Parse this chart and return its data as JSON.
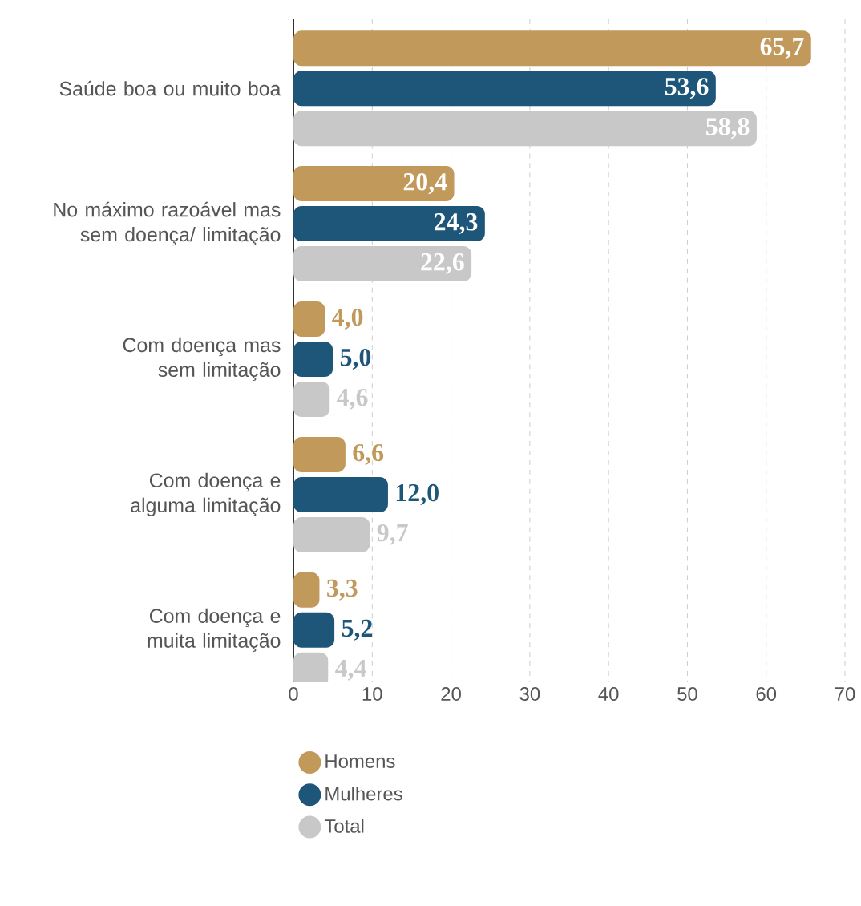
{
  "chart_data": {
    "type": "bar",
    "orientation": "horizontal",
    "categories": [
      "Saúde boa ou muito boa",
      "No máximo razoável mas sem doença/ limitação",
      "Com doença mas sem limitação",
      "Com doença e alguma limitação",
      "Com doença e muita limitação"
    ],
    "series": [
      {
        "name": "Homens",
        "color": "#c1995a",
        "values": [
          65.7,
          20.4,
          4.0,
          6.6,
          3.3
        ],
        "value_labels": [
          "65,7",
          "20,4",
          "4,0",
          "6,6",
          "3,3"
        ]
      },
      {
        "name": "Mulheres",
        "color": "#1d5679",
        "values": [
          53.6,
          24.3,
          5.0,
          12.0,
          5.2
        ],
        "value_labels": [
          "53,6",
          "24,3",
          "5,0",
          "12,0",
          "5,2"
        ]
      },
      {
        "name": "Total",
        "color": "#c8c8c8",
        "values": [
          58.8,
          22.6,
          4.6,
          9.7,
          4.4
        ],
        "value_labels": [
          "58,8",
          "22,6",
          "4,6",
          "9,7",
          "4,4"
        ]
      }
    ],
    "xlim": [
      0,
      70
    ],
    "xticks": [
      0,
      10,
      20,
      30,
      40,
      50,
      60,
      70
    ],
    "grid": "x",
    "legend": "bottom"
  }
}
